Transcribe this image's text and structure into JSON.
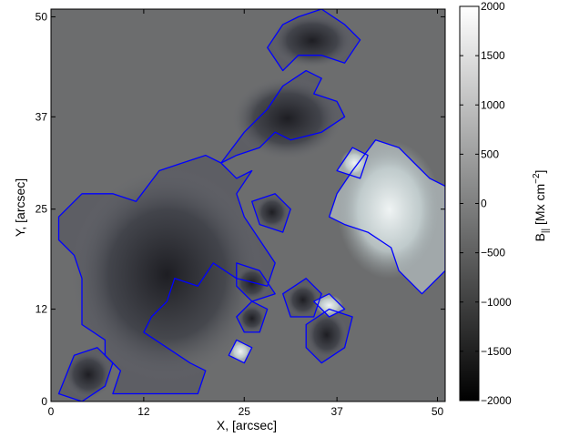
{
  "chart_data": {
    "type": "heatmap",
    "title": "",
    "xlabel": "X, [arcsec]",
    "ylabel": "Y, [arcsec]",
    "xlim": [
      0,
      51
    ],
    "ylim": [
      0,
      51
    ],
    "x_ticks": [
      0,
      12,
      25,
      37,
      50
    ],
    "y_ticks": [
      0,
      12,
      25,
      37,
      50
    ],
    "colorbar": {
      "label_main": "B",
      "label_sub": "||",
      "label_unit": " [Mx cm",
      "label_exp": "−2",
      "label_close": "]",
      "range": [
        -2000,
        2000
      ],
      "ticks": [
        2000,
        1500,
        1000,
        500,
        0,
        -500,
        -1000,
        -1500,
        -2000
      ],
      "colors": [
        "#000000",
        "#7f8080",
        "#ffffff"
      ]
    },
    "background_value": -300,
    "contour_color": "#0000ff",
    "regions": [
      {
        "polarity": "negative",
        "points": [
          [
            1,
            24
          ],
          [
            4,
            27
          ],
          [
            8,
            27
          ],
          [
            11,
            26
          ],
          [
            14,
            30
          ],
          [
            17,
            31
          ],
          [
            20,
            32
          ],
          [
            22,
            31
          ],
          [
            24,
            29
          ],
          [
            26,
            30
          ],
          [
            24,
            27
          ],
          [
            25,
            24
          ],
          [
            27,
            21
          ],
          [
            29,
            18
          ],
          [
            28,
            15
          ],
          [
            24,
            16
          ],
          [
            21,
            18
          ],
          [
            19,
            15
          ],
          [
            16,
            16
          ],
          [
            15,
            13
          ],
          [
            13,
            11
          ],
          [
            12,
            9
          ],
          [
            15,
            7
          ],
          [
            18,
            5
          ],
          [
            20,
            4
          ],
          [
            19,
            1
          ],
          [
            14,
            1
          ],
          [
            11,
            1
          ],
          [
            8,
            1
          ],
          [
            9,
            4
          ],
          [
            7,
            6
          ],
          [
            7,
            8
          ],
          [
            4,
            10
          ],
          [
            4,
            16
          ],
          [
            3,
            19
          ],
          [
            1,
            21
          ]
        ]
      },
      {
        "polarity": "negative",
        "points": [
          [
            22,
            31
          ],
          [
            25,
            35
          ],
          [
            28,
            38
          ],
          [
            30,
            41
          ],
          [
            33,
            43
          ],
          [
            35,
            42
          ],
          [
            34,
            40
          ],
          [
            37,
            39
          ],
          [
            38,
            37
          ],
          [
            35,
            35
          ],
          [
            31,
            34
          ],
          [
            29,
            35
          ],
          [
            27,
            33
          ],
          [
            24,
            32
          ]
        ]
      },
      {
        "polarity": "negative",
        "points": [
          [
            28,
            46
          ],
          [
            30,
            49
          ],
          [
            32,
            50
          ],
          [
            35,
            51
          ],
          [
            38,
            49
          ],
          [
            40,
            47
          ],
          [
            38,
            44
          ],
          [
            35,
            45
          ],
          [
            32,
            45
          ],
          [
            30,
            43
          ]
        ]
      },
      {
        "polarity": "negative",
        "points": [
          [
            26,
            26
          ],
          [
            29,
            27
          ],
          [
            31,
            25
          ],
          [
            30,
            22
          ],
          [
            27,
            23
          ]
        ]
      },
      {
        "polarity": "negative",
        "points": [
          [
            24,
            18
          ],
          [
            27,
            17
          ],
          [
            29,
            14
          ],
          [
            26,
            13
          ],
          [
            24,
            15
          ]
        ]
      },
      {
        "polarity": "negative",
        "points": [
          [
            30,
            14
          ],
          [
            33,
            16
          ],
          [
            35,
            14
          ],
          [
            34,
            11
          ],
          [
            31,
            11
          ]
        ]
      },
      {
        "polarity": "negative",
        "points": [
          [
            33,
            10
          ],
          [
            36,
            12
          ],
          [
            39,
            11
          ],
          [
            38,
            7
          ],
          [
            35,
            5
          ],
          [
            33,
            7
          ]
        ]
      },
      {
        "polarity": "negative",
        "points": [
          [
            1,
            1
          ],
          [
            3,
            6
          ],
          [
            6,
            7
          ],
          [
            8,
            5
          ],
          [
            7,
            2
          ],
          [
            4,
            0
          ]
        ]
      },
      {
        "polarity": "negative",
        "points": [
          [
            24,
            11
          ],
          [
            26,
            13
          ],
          [
            28,
            12
          ],
          [
            27,
            9
          ],
          [
            25,
            9
          ]
        ]
      },
      {
        "polarity": "positive",
        "points": [
          [
            39,
            30
          ],
          [
            42,
            34
          ],
          [
            45,
            33
          ],
          [
            47,
            31
          ],
          [
            49,
            29
          ],
          [
            51,
            28
          ],
          [
            51,
            17
          ],
          [
            48,
            14
          ],
          [
            45,
            17
          ],
          [
            44,
            20
          ],
          [
            41,
            22
          ],
          [
            38,
            23
          ],
          [
            36,
            24
          ],
          [
            37,
            27
          ]
        ]
      },
      {
        "polarity": "positive",
        "points": [
          [
            34,
            13
          ],
          [
            36,
            14
          ],
          [
            38,
            12
          ],
          [
            36,
            11
          ]
        ]
      },
      {
        "polarity": "positive",
        "points": [
          [
            23,
            6
          ],
          [
            24,
            8
          ],
          [
            26,
            7
          ],
          [
            25,
            5
          ]
        ]
      },
      {
        "polarity": "positive",
        "points": [
          [
            37,
            30
          ],
          [
            39,
            33
          ],
          [
            41,
            32
          ],
          [
            40,
            29
          ]
        ]
      }
    ]
  }
}
